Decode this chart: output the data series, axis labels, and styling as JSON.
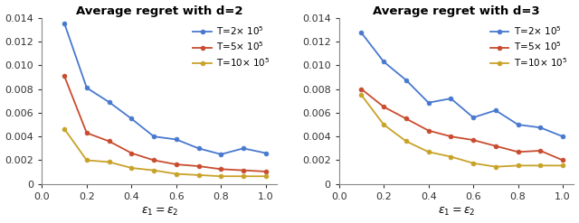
{
  "x": [
    0.1,
    0.2,
    0.3,
    0.4,
    0.5,
    0.6,
    0.7,
    0.8,
    0.9,
    1.0
  ],
  "d2": {
    "T2": [
      0.01355,
      0.0081,
      0.0069,
      0.0055,
      0.004,
      0.00375,
      0.003,
      0.0025,
      0.003,
      0.0026
    ],
    "T5": [
      0.0091,
      0.0043,
      0.0036,
      0.0026,
      0.002,
      0.00165,
      0.0015,
      0.00125,
      0.00115,
      0.00105
    ],
    "T10": [
      0.00465,
      0.002,
      0.00185,
      0.00135,
      0.00115,
      0.00085,
      0.00075,
      0.00065,
      0.00065,
      0.00065
    ]
  },
  "d3": {
    "T2": [
      0.01275,
      0.0103,
      0.00875,
      0.00685,
      0.0072,
      0.0056,
      0.0062,
      0.005,
      0.00475,
      0.004
    ],
    "T5": [
      0.008,
      0.0065,
      0.0055,
      0.0045,
      0.004,
      0.0037,
      0.0032,
      0.0027,
      0.0028,
      0.002
    ],
    "T10": [
      0.0075,
      0.005,
      0.0036,
      0.0027,
      0.0023,
      0.00175,
      0.00145,
      0.00155,
      0.00155,
      0.00155
    ]
  },
  "colors": {
    "T2": "#4878CF",
    "T5": "#C94B2E",
    "T10": "#C8A227"
  },
  "title_d2": "Average regret with d=2",
  "title_d3": "Average regret with d=3",
  "xlabel": "$\\epsilon_1=\\epsilon_2$",
  "ylim": [
    0,
    0.014
  ],
  "yticks": [
    0,
    0.002,
    0.004,
    0.006,
    0.008,
    0.01,
    0.012,
    0.014
  ],
  "xticks": [
    0,
    0.2,
    0.4,
    0.6,
    0.8,
    1.0
  ],
  "legend_labels": {
    "T2": "T=2$\\times$ 10$^5$",
    "T5": "T=5$\\times$ 10$^5$",
    "T10": "T=10$\\times$ 10$^5$"
  }
}
